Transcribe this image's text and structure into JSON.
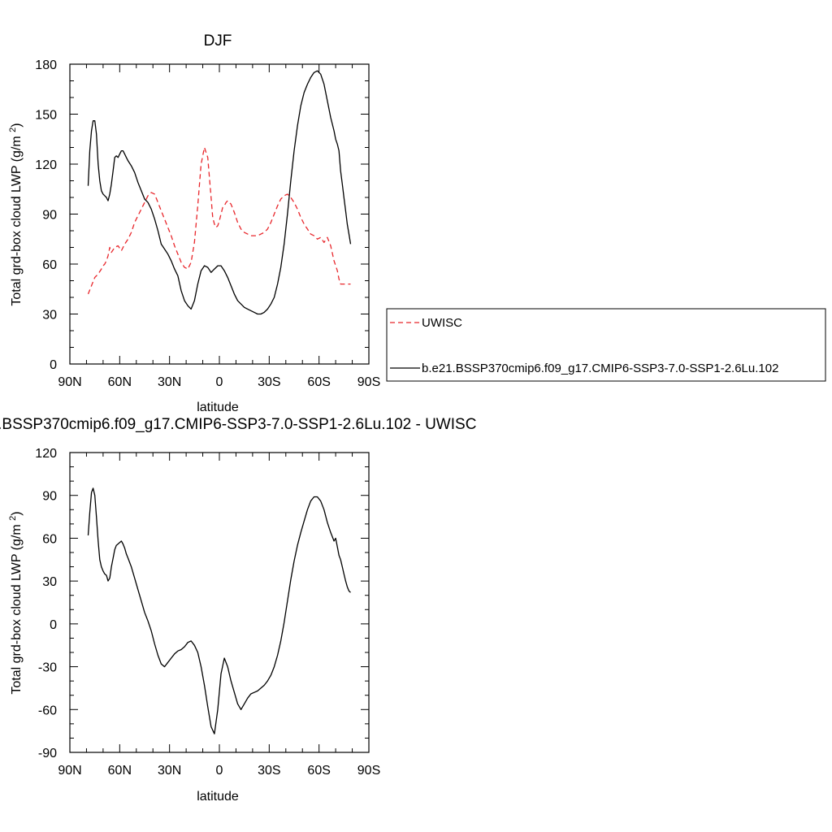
{
  "chart_data": [
    {
      "type": "line",
      "title": "DJF",
      "xlabel": "latitude",
      "ylabel": "Total grd-box cloud LWP (g/m²)",
      "xlim": [
        90,
        -90
      ],
      "ylim": [
        0,
        180
      ],
      "xticks": [
        90,
        60,
        30,
        0,
        -30,
        -60,
        -90
      ],
      "xtick_labels": [
        "90N",
        "60N",
        "30N",
        "0",
        "30S",
        "60S",
        "90S"
      ],
      "yticks": [
        0,
        30,
        60,
        90,
        120,
        150,
        180
      ],
      "ytick_labels": [
        "0",
        "30",
        "60",
        "90",
        "120",
        "150",
        "180"
      ],
      "legend": {
        "placement": "right",
        "entries": [
          "UWISC",
          "b.e21.BSSP370cmip6.f09_g17.CMIP6-SSP3-7.0-SSP1-2.6Lu.102"
        ]
      },
      "series": [
        {
          "name": "UWISC",
          "color": "#e8262b",
          "dash": "dashed",
          "x": [
            79,
            77,
            75,
            73,
            71,
            70,
            69,
            68,
            67,
            66,
            65,
            63,
            61,
            59,
            57,
            55,
            53,
            51,
            49,
            47,
            45,
            43,
            41,
            39,
            37,
            35,
            33,
            31,
            29,
            27,
            25,
            23,
            21,
            19,
            17,
            15,
            13,
            11,
            9,
            7,
            5,
            4,
            3,
            2,
            1,
            0,
            -1,
            -2,
            -3,
            -4,
            -5,
            -7,
            -9,
            -11,
            -13,
            -15,
            -17,
            -19,
            -21,
            -23,
            -25,
            -27,
            -29,
            -31,
            -33,
            -35,
            -37,
            -39,
            -41,
            -43,
            -45,
            -47,
            -49,
            -51,
            -53,
            -55,
            -57,
            -59,
            -61,
            -63,
            -65,
            -67,
            -69,
            -71,
            -72,
            -73,
            -74,
            -75,
            -76,
            -77,
            -79
          ],
          "y": [
            42,
            47,
            52,
            54,
            57,
            59,
            60,
            62,
            65,
            70,
            67,
            70,
            71,
            68,
            72,
            75,
            79,
            85,
            89,
            93,
            97,
            101,
            103,
            102,
            97,
            92,
            87,
            82,
            77,
            71,
            66,
            61,
            58,
            57,
            61,
            73,
            95,
            120,
            130,
            124,
            100,
            88,
            84,
            82,
            83,
            86,
            90,
            94,
            95,
            97,
            98,
            96,
            91,
            85,
            81,
            79,
            78,
            77,
            77,
            77,
            78,
            79,
            81,
            85,
            90,
            95,
            99,
            101,
            102,
            100,
            97,
            93,
            88,
            84,
            81,
            78,
            77,
            75,
            76,
            73,
            76,
            71,
            62,
            56,
            51,
            48,
            48,
            48,
            48,
            48,
            48
          ]
        },
        {
          "name": "b.e21.BSSP370cmip6.f09_g17.CMIP6-SSP3-7.0-SSP1-2.6Lu.102",
          "color": "#000000",
          "dash": "solid",
          "x": [
            79,
            78,
            77,
            76,
            75,
            74,
            73,
            72,
            71,
            70,
            69,
            68,
            67,
            66,
            65,
            64,
            63,
            62,
            61,
            60,
            59,
            58,
            57,
            56,
            55,
            53,
            51,
            49,
            47,
            45,
            43,
            41,
            39,
            37,
            35,
            33,
            31,
            29,
            27,
            25,
            23,
            21,
            19,
            17,
            15,
            13,
            11,
            9,
            7,
            5,
            3,
            1,
            -1,
            -3,
            -5,
            -7,
            -9,
            -11,
            -13,
            -15,
            -17,
            -19,
            -21,
            -23,
            -25,
            -27,
            -29,
            -31,
            -33,
            -35,
            -37,
            -39,
            -41,
            -43,
            -45,
            -47,
            -49,
            -51,
            -53,
            -55,
            -57,
            -59,
            -61,
            -63,
            -65,
            -67,
            -69,
            -70,
            -71,
            -72,
            -73,
            -74,
            -75,
            -76,
            -77,
            -78,
            -79
          ],
          "y": [
            107,
            128,
            140,
            146,
            146,
            138,
            120,
            110,
            104,
            102,
            101,
            100,
            98,
            102,
            108,
            116,
            124,
            125,
            124,
            126,
            128,
            128,
            126,
            124,
            122,
            119,
            115,
            109,
            104,
            99,
            97,
            93,
            87,
            80,
            72,
            69,
            66,
            62,
            57,
            53,
            44,
            38,
            35,
            33,
            38,
            48,
            56,
            59,
            58,
            55,
            57,
            59,
            59,
            56,
            52,
            47,
            42,
            38,
            36,
            34,
            33,
            32,
            31,
            30,
            30,
            31,
            33,
            36,
            40,
            48,
            58,
            72,
            90,
            110,
            128,
            143,
            155,
            163,
            168,
            172,
            175,
            176,
            174,
            168,
            158,
            148,
            140,
            135,
            132,
            128,
            116,
            108,
            100,
            92,
            84,
            78,
            72
          ]
        }
      ]
    },
    {
      "type": "line",
      "title": "b.e21.BSSP370cmip6.f09_g17.CMIP6-SSP3-7.0-SSP1-2.6Lu.102 - UWISC",
      "xlabel": "latitude",
      "ylabel": "Total grd-box cloud LWP (g/m²)",
      "xlim": [
        90,
        -90
      ],
      "ylim": [
        -90,
        120
      ],
      "xticks": [
        90,
        60,
        30,
        0,
        -30,
        -60,
        -90
      ],
      "xtick_labels": [
        "90N",
        "60N",
        "30N",
        "0",
        "30S",
        "60S",
        "90S"
      ],
      "yticks": [
        -90,
        -60,
        -30,
        0,
        30,
        60,
        90,
        120
      ],
      "ytick_labels": [
        "-90",
        "-60",
        "-30",
        "0",
        "30",
        "60",
        "90",
        "120"
      ],
      "series": [
        {
          "color": "#000000",
          "dash": "solid",
          "x": [
            79,
            78,
            77,
            76,
            75,
            74,
            73,
            72,
            71,
            70,
            69,
            68,
            67,
            66,
            65,
            64,
            63,
            62,
            61,
            60,
            59,
            58,
            57,
            56,
            55,
            53,
            51,
            49,
            47,
            45,
            43,
            41,
            39,
            37,
            35,
            33,
            31,
            29,
            27,
            25,
            23,
            21,
            19,
            17,
            15,
            13,
            11,
            9,
            7,
            5,
            3,
            1,
            -1,
            -3,
            -5,
            -7,
            -9,
            -11,
            -13,
            -15,
            -17,
            -19,
            -21,
            -23,
            -25,
            -27,
            -29,
            -31,
            -33,
            -35,
            -37,
            -39,
            -41,
            -43,
            -45,
            -47,
            -49,
            -51,
            -53,
            -55,
            -57,
            -59,
            -61,
            -63,
            -65,
            -67,
            -69,
            -70,
            -71,
            -72,
            -73,
            -74,
            -75,
            -76,
            -77,
            -78,
            -79
          ],
          "y": [
            62,
            78,
            92,
            95,
            90,
            75,
            58,
            45,
            40,
            37,
            35,
            34,
            30,
            32,
            40,
            46,
            52,
            55,
            56,
            57,
            58,
            56,
            53,
            49,
            46,
            40,
            32,
            24,
            16,
            8,
            2,
            -5,
            -14,
            -22,
            -28,
            -30,
            -27,
            -24,
            -21,
            -19,
            -18,
            -16,
            -13,
            -12,
            -15,
            -20,
            -30,
            -43,
            -58,
            -72,
            -77,
            -60,
            -35,
            -24,
            -30,
            -40,
            -48,
            -56,
            -60,
            -56,
            -52,
            -49,
            -48,
            -47,
            -45,
            -43,
            -40,
            -36,
            -30,
            -22,
            -12,
            1,
            16,
            31,
            44,
            55,
            64,
            72,
            80,
            86,
            89,
            89,
            86,
            80,
            71,
            64,
            58,
            60,
            54,
            48,
            45,
            40,
            35,
            30,
            26,
            23,
            22
          ]
        }
      ]
    }
  ]
}
